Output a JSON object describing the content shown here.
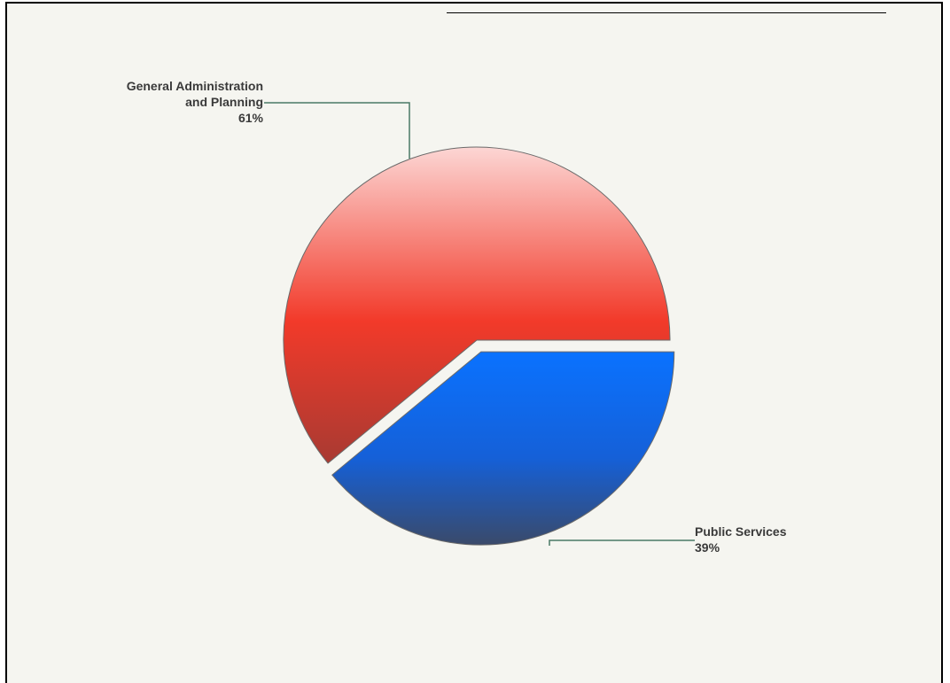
{
  "chart_data": {
    "type": "pie",
    "slices": [
      {
        "label_lines": [
          "General Administration",
          "and Planning"
        ],
        "percent_label": "61%",
        "value": 61,
        "color_light": "#fcd6d4",
        "color_mid": "#f23a2a",
        "color_dark": "#a83a32",
        "exploded": false
      },
      {
        "label_lines": [
          "Public Services"
        ],
        "percent_label": "39%",
        "value": 39,
        "color_light": "#0a72ff",
        "color_mid": "#1560d8",
        "color_dark": "#3a4a6a",
        "exploded": true
      }
    ],
    "legend": "none",
    "leader_line_color": "#4a7a66"
  }
}
